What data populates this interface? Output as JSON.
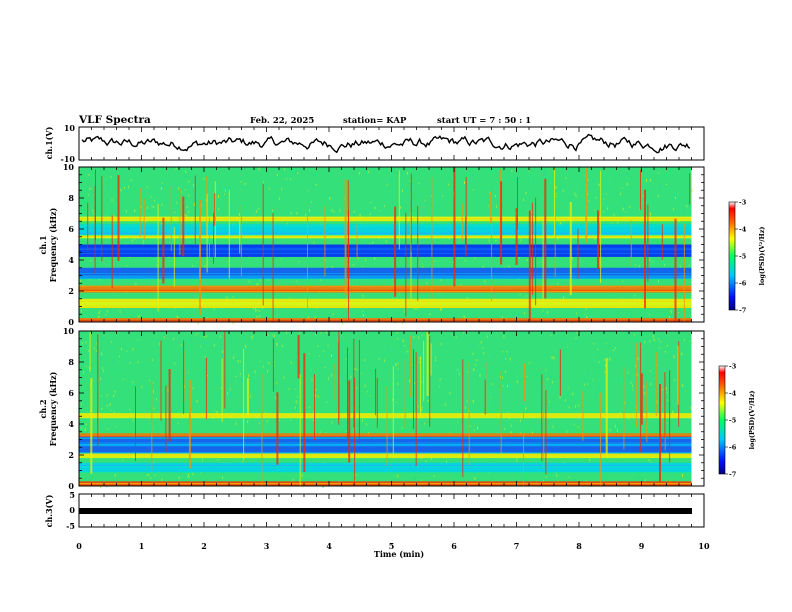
{
  "header": {
    "title": "VLF Spectra",
    "date": "Feb. 22, 2025",
    "station": "station= KAP",
    "start": "start  UT  =   7 : 50 : 1"
  },
  "colors": {
    "spectrogram_background": "#33e07a",
    "trace": "#000000"
  },
  "chart_data": [
    {
      "id": "ch1-waveform",
      "type": "line",
      "ylabel": "ch.1(V)",
      "ylim": [
        -10,
        10
      ],
      "yticks": [
        10,
        -10
      ],
      "xlim": [
        0,
        10
      ],
      "note": "noisy waveform roughly between -8 and 8 V"
    },
    {
      "id": "ch1-spectrogram",
      "type": "heatmap",
      "ylabel_line1": "ch.1",
      "ylabel_line2": "Frequency (kHz)",
      "ylim": [
        0,
        10
      ],
      "yticks": [
        0,
        2,
        4,
        6,
        8,
        10
      ],
      "xlim": [
        0,
        9.8
      ],
      "colorbar": {
        "label": "log(PSD)(V²/Hz)",
        "range": [
          -7,
          -3
        ],
        "ticks": [
          "-3",
          "-4",
          "-5",
          "-6",
          "-7"
        ]
      },
      "bands_khz": [
        {
          "f0": 0.0,
          "f1": 0.25,
          "level": "red-yellow"
        },
        {
          "f0": 0.9,
          "f1": 1.5,
          "level": "yellow"
        },
        {
          "f0": 1.9,
          "f1": 2.35,
          "level": "orange"
        },
        {
          "f0": 2.8,
          "f1": 3.5,
          "level": "blue-cyan"
        },
        {
          "f0": 4.2,
          "f1": 5.0,
          "level": "blue"
        },
        {
          "f0": 5.4,
          "f1": 5.6,
          "level": "yellow"
        },
        {
          "f0": 5.6,
          "f1": 6.3,
          "level": "cyan"
        },
        {
          "f0": 6.5,
          "f1": 6.8,
          "level": "yellow"
        }
      ]
    },
    {
      "id": "ch2-spectrogram",
      "type": "heatmap",
      "ylabel_line1": "ch.2",
      "ylabel_line2": "Frequency (kHz)",
      "ylim": [
        0,
        10
      ],
      "yticks": [
        0,
        2,
        4,
        6,
        8,
        10
      ],
      "xlim": [
        0,
        9.8
      ],
      "colorbar": {
        "label": "log(PSD)(V²/Hz)",
        "range": [
          -7,
          -3
        ],
        "ticks": [
          "-3",
          "-4",
          "-5",
          "-6",
          "-7"
        ]
      },
      "bands_khz": [
        {
          "f0": 0.0,
          "f1": 0.3,
          "level": "red-yellow"
        },
        {
          "f0": 0.9,
          "f1": 1.5,
          "level": "cyan"
        },
        {
          "f0": 1.8,
          "f1": 2.1,
          "level": "yellow"
        },
        {
          "f0": 2.1,
          "f1": 3.2,
          "level": "blue-cyan"
        },
        {
          "f0": 3.2,
          "f1": 3.4,
          "level": "orange"
        },
        {
          "f0": 4.4,
          "f1": 4.7,
          "level": "yellow"
        }
      ]
    },
    {
      "id": "ch3-waveform",
      "type": "line",
      "ylabel": "ch.3(V)",
      "ylim": [
        -5,
        5
      ],
      "yticks": [
        5,
        0,
        -5
      ],
      "xlim": [
        0,
        10
      ],
      "note": "thick flat trace near -0.5 V from 0 to 9.8 min"
    }
  ],
  "xaxis": {
    "label": "Time (min)",
    "ticks": [
      "0",
      "1",
      "2",
      "3",
      "4",
      "5",
      "6",
      "7",
      "8",
      "9",
      "10"
    ]
  }
}
